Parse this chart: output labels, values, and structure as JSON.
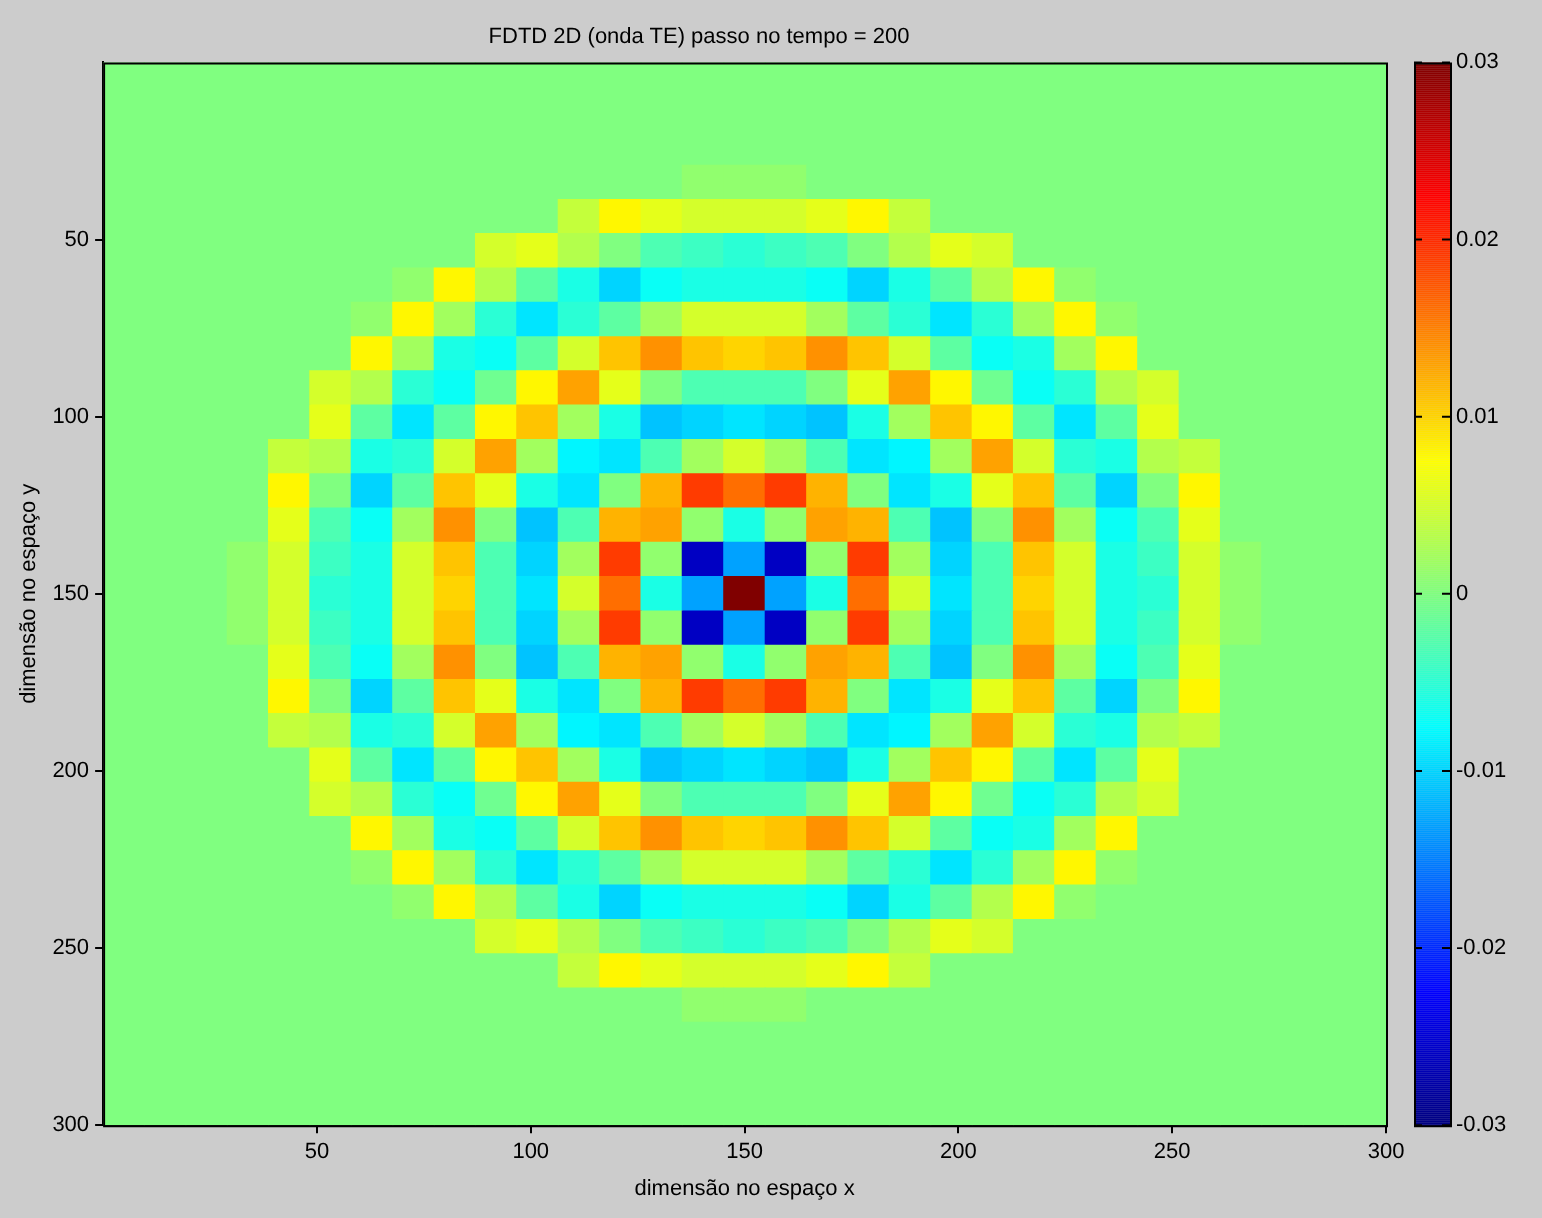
{
  "chart_data": {
    "type": "heatmap",
    "title": "FDTD 2D (onda TE) passo no tempo = 200",
    "xlabel": "dimensão no espaço x",
    "ylabel": "dimensão no espaço y",
    "x": [
      4.8,
      14.5,
      24.2,
      33.9,
      43.5,
      53.2,
      62.9,
      72.6,
      82.3,
      91.9,
      101.6,
      111.3,
      121.0,
      130.6,
      140.3,
      150.0,
      159.7,
      169.4,
      179.0,
      188.7,
      198.4,
      208.1,
      217.7,
      227.4,
      237.1,
      246.8,
      256.5,
      266.1,
      275.8,
      285.5,
      295.2
    ],
    "y": [
      4.8,
      14.5,
      24.2,
      33.9,
      43.5,
      53.2,
      62.9,
      72.6,
      82.3,
      91.9,
      101.6,
      111.3,
      121.0,
      130.6,
      140.3,
      150.0,
      159.7,
      169.4,
      179.0,
      188.7,
      198.4,
      208.1,
      217.7,
      227.4,
      237.1,
      246.8,
      256.5,
      266.1,
      275.8,
      285.5,
      295.2
    ],
    "xlim": [
      0,
      300
    ],
    "xticks": [
      50,
      100,
      150,
      200,
      250,
      300
    ],
    "ylim": [
      300,
      0
    ],
    "yticks": [
      50,
      100,
      150,
      200,
      250,
      300
    ],
    "clim": [
      -0.03,
      0.03
    ],
    "cticks": [
      -0.03,
      -0.02,
      -0.01,
      0,
      0.01,
      0.02,
      0.03
    ],
    "cells": [
      [
        0,
        0,
        0,
        0,
        0,
        0,
        0,
        0,
        0,
        0,
        0,
        0,
        0,
        0,
        0,
        0,
        0,
        0,
        0,
        0,
        0,
        0,
        0,
        0,
        0,
        0,
        0,
        0,
        0,
        0,
        0
      ],
      [
        0,
        0,
        0,
        0,
        0,
        0,
        0,
        0,
        0,
        0,
        0,
        0,
        0,
        0,
        0,
        0,
        0,
        0,
        0,
        0,
        0,
        0,
        0,
        0,
        0,
        0,
        0,
        0,
        0,
        0,
        0
      ],
      [
        0,
        0,
        0,
        0,
        0,
        0,
        0,
        0,
        0,
        0,
        0,
        0,
        0,
        0,
        0,
        0,
        0,
        0,
        0,
        0,
        0,
        0,
        0,
        0,
        0,
        0,
        0,
        0,
        0,
        0,
        0
      ],
      [
        0,
        0,
        0,
        0,
        0,
        0,
        0,
        0,
        0,
        0,
        0,
        0,
        0,
        0,
        0.001,
        0.001,
        0.001,
        0,
        0,
        0,
        0,
        0,
        0,
        0,
        0,
        0,
        0,
        0,
        0,
        0,
        0
      ],
      [
        0,
        0,
        0,
        0,
        0,
        0,
        0,
        0,
        0,
        0,
        0,
        0.004,
        0.008,
        0.006,
        0.005,
        0.005,
        0.005,
        0.006,
        0.008,
        0.004,
        0,
        0,
        0,
        0,
        0,
        0,
        0,
        0,
        0,
        0,
        0
      ],
      [
        0,
        0,
        0,
        0,
        0,
        0,
        0,
        0,
        0,
        0.005,
        0.006,
        0.003,
        0,
        -0.003,
        -0.004,
        -0.005,
        -0.004,
        -0.003,
        0,
        0.003,
        0.006,
        0.005,
        0,
        0,
        0,
        0,
        0,
        0,
        0,
        0,
        0
      ],
      [
        0,
        0,
        0,
        0,
        0,
        0,
        0,
        0.001,
        0.008,
        0.003,
        -0.002,
        -0.006,
        -0.01,
        -0.007,
        -0.006,
        -0.006,
        -0.006,
        -0.007,
        -0.01,
        -0.006,
        -0.002,
        0.003,
        0.008,
        0.001,
        0,
        0,
        0,
        0,
        0,
        0,
        0
      ],
      [
        0,
        0,
        0,
        0,
        0,
        0,
        0.001,
        0.008,
        0.002,
        -0.005,
        -0.009,
        -0.005,
        -0.002,
        0.002,
        0.005,
        0.005,
        0.005,
        0.002,
        -0.002,
        -0.005,
        -0.009,
        -0.005,
        0.002,
        0.008,
        0.001,
        0,
        0,
        0,
        0,
        0,
        0
      ],
      [
        0,
        0,
        0,
        0,
        0,
        0,
        0.008,
        0.002,
        -0.006,
        -0.007,
        -0.002,
        0.005,
        0.011,
        0.014,
        0.011,
        0.01,
        0.011,
        0.014,
        0.011,
        0.005,
        -0.002,
        -0.007,
        -0.006,
        0.002,
        0.008,
        0,
        0,
        0,
        0,
        0,
        0
      ],
      [
        0,
        0,
        0,
        0,
        0,
        0.005,
        0.003,
        -0.005,
        -0.007,
        -0.001,
        0.008,
        0.013,
        0.006,
        0,
        -0.003,
        -0.003,
        -0.003,
        0,
        0.006,
        0.013,
        0.008,
        -0.001,
        -0.007,
        -0.005,
        0.003,
        0.005,
        0,
        0,
        0,
        0,
        0
      ],
      [
        0,
        0,
        0,
        0,
        0,
        0.006,
        -0.002,
        -0.009,
        -0.002,
        0.008,
        0.011,
        0.002,
        -0.006,
        -0.011,
        -0.01,
        -0.009,
        -0.01,
        -0.011,
        -0.006,
        0.002,
        0.011,
        0.008,
        -0.002,
        -0.009,
        -0.002,
        0.006,
        0,
        0,
        0,
        0,
        0
      ],
      [
        0,
        0,
        0,
        0,
        0.004,
        0.003,
        -0.006,
        -0.005,
        0.005,
        0.013,
        0.002,
        -0.008,
        -0.009,
        -0.003,
        0.002,
        0.005,
        0.002,
        -0.003,
        -0.009,
        -0.008,
        0.002,
        0.013,
        0.005,
        -0.005,
        -0.006,
        0.003,
        0.004,
        0,
        0,
        0,
        0
      ],
      [
        0,
        0,
        0,
        0,
        0.008,
        0,
        -0.01,
        -0.002,
        0.011,
        0.006,
        -0.006,
        -0.009,
        0,
        0.012,
        0.019,
        0.016,
        0.019,
        0.012,
        0,
        -0.009,
        -0.006,
        0.006,
        0.011,
        -0.002,
        -0.01,
        0,
        0.008,
        0,
        0,
        0,
        0
      ],
      [
        0,
        0,
        0,
        0,
        0.006,
        -0.003,
        -0.007,
        0.002,
        0.014,
        0,
        -0.011,
        -0.003,
        0.012,
        0.013,
        0.001,
        -0.006,
        0.001,
        0.013,
        0.012,
        -0.003,
        -0.011,
        0,
        0.014,
        0.002,
        -0.007,
        -0.003,
        0.006,
        0,
        0,
        0,
        0
      ],
      [
        0,
        0,
        0,
        0.001,
        0.005,
        -0.004,
        -0.006,
        0.005,
        0.011,
        -0.003,
        -0.01,
        0.002,
        0.019,
        0.001,
        -0.026,
        -0.013,
        -0.026,
        0.001,
        0.019,
        0.002,
        -0.01,
        -0.003,
        0.011,
        0.005,
        -0.006,
        -0.004,
        0.005,
        0.001,
        0,
        0,
        0
      ],
      [
        0,
        0,
        0,
        0.001,
        0.005,
        -0.005,
        -0.006,
        0.005,
        0.01,
        -0.003,
        -0.009,
        0.005,
        0.016,
        -0.006,
        -0.013,
        0.03,
        -0.013,
        -0.006,
        0.016,
        0.005,
        -0.009,
        -0.003,
        0.01,
        0.005,
        -0.006,
        -0.005,
        0.005,
        0.001,
        0,
        0,
        0
      ],
      [
        0,
        0,
        0,
        0.001,
        0.005,
        -0.004,
        -0.006,
        0.005,
        0.011,
        -0.003,
        -0.01,
        0.002,
        0.019,
        0.001,
        -0.026,
        -0.013,
        -0.026,
        0.001,
        0.019,
        0.002,
        -0.01,
        -0.003,
        0.011,
        0.005,
        -0.006,
        -0.004,
        0.005,
        0.001,
        0,
        0,
        0
      ],
      [
        0,
        0,
        0,
        0,
        0.006,
        -0.003,
        -0.007,
        0.002,
        0.014,
        0,
        -0.011,
        -0.003,
        0.012,
        0.013,
        0.001,
        -0.006,
        0.001,
        0.013,
        0.012,
        -0.003,
        -0.011,
        0,
        0.014,
        0.002,
        -0.007,
        -0.003,
        0.006,
        0,
        0,
        0,
        0
      ],
      [
        0,
        0,
        0,
        0,
        0.008,
        0,
        -0.01,
        -0.002,
        0.011,
        0.006,
        -0.006,
        -0.009,
        0,
        0.012,
        0.019,
        0.016,
        0.019,
        0.012,
        0,
        -0.009,
        -0.006,
        0.006,
        0.011,
        -0.002,
        -0.01,
        0,
        0.008,
        0,
        0,
        0,
        0
      ],
      [
        0,
        0,
        0,
        0,
        0.004,
        0.003,
        -0.006,
        -0.005,
        0.005,
        0.013,
        0.002,
        -0.008,
        -0.009,
        -0.003,
        0.002,
        0.005,
        0.002,
        -0.003,
        -0.009,
        -0.008,
        0.002,
        0.013,
        0.005,
        -0.005,
        -0.006,
        0.003,
        0.004,
        0,
        0,
        0,
        0
      ],
      [
        0,
        0,
        0,
        0,
        0,
        0.006,
        -0.002,
        -0.009,
        -0.002,
        0.008,
        0.011,
        0.002,
        -0.006,
        -0.011,
        -0.01,
        -0.009,
        -0.01,
        -0.011,
        -0.006,
        0.002,
        0.011,
        0.008,
        -0.002,
        -0.009,
        -0.002,
        0.006,
        0,
        0,
        0,
        0,
        0
      ],
      [
        0,
        0,
        0,
        0,
        0,
        0.005,
        0.003,
        -0.005,
        -0.007,
        -0.001,
        0.008,
        0.013,
        0.006,
        0,
        -0.003,
        -0.003,
        -0.003,
        0,
        0.006,
        0.013,
        0.008,
        -0.001,
        -0.007,
        -0.005,
        0.003,
        0.005,
        0,
        0,
        0,
        0,
        0
      ],
      [
        0,
        0,
        0,
        0,
        0,
        0,
        0.008,
        0.002,
        -0.006,
        -0.007,
        -0.002,
        0.005,
        0.011,
        0.014,
        0.011,
        0.01,
        0.011,
        0.014,
        0.011,
        0.005,
        -0.002,
        -0.007,
        -0.006,
        0.002,
        0.008,
        0,
        0,
        0,
        0,
        0,
        0
      ],
      [
        0,
        0,
        0,
        0,
        0,
        0,
        0.001,
        0.008,
        0.002,
        -0.005,
        -0.009,
        -0.005,
        -0.002,
        0.002,
        0.005,
        0.005,
        0.005,
        0.002,
        -0.002,
        -0.005,
        -0.009,
        -0.005,
        0.002,
        0.008,
        0.001,
        0,
        0,
        0,
        0,
        0,
        0
      ],
      [
        0,
        0,
        0,
        0,
        0,
        0,
        0,
        0.001,
        0.008,
        0.003,
        -0.002,
        -0.006,
        -0.01,
        -0.007,
        -0.006,
        -0.006,
        -0.006,
        -0.007,
        -0.01,
        -0.006,
        -0.002,
        0.003,
        0.008,
        0.001,
        0,
        0,
        0,
        0,
        0,
        0,
        0
      ],
      [
        0,
        0,
        0,
        0,
        0,
        0,
        0,
        0,
        0,
        0.005,
        0.006,
        0.003,
        0,
        -0.003,
        -0.004,
        -0.005,
        -0.004,
        -0.003,
        0,
        0.003,
        0.006,
        0.005,
        0,
        0,
        0,
        0,
        0,
        0,
        0,
        0,
        0
      ],
      [
        0,
        0,
        0,
        0,
        0,
        0,
        0,
        0,
        0,
        0,
        0,
        0.004,
        0.008,
        0.006,
        0.005,
        0.005,
        0.005,
        0.006,
        0.008,
        0.004,
        0,
        0,
        0,
        0,
        0,
        0,
        0,
        0,
        0,
        0,
        0
      ],
      [
        0,
        0,
        0,
        0,
        0,
        0,
        0,
        0,
        0,
        0,
        0,
        0,
        0,
        0,
        0.001,
        0.001,
        0.001,
        0,
        0,
        0,
        0,
        0,
        0,
        0,
        0,
        0,
        0,
        0,
        0,
        0,
        0
      ],
      [
        0,
        0,
        0,
        0,
        0,
        0,
        0,
        0,
        0,
        0,
        0,
        0,
        0,
        0,
        0,
        0,
        0,
        0,
        0,
        0,
        0,
        0,
        0,
        0,
        0,
        0,
        0,
        0,
        0,
        0,
        0
      ],
      [
        0,
        0,
        0,
        0,
        0,
        0,
        0,
        0,
        0,
        0,
        0,
        0,
        0,
        0,
        0,
        0,
        0,
        0,
        0,
        0,
        0,
        0,
        0,
        0,
        0,
        0,
        0,
        0,
        0,
        0,
        0
      ],
      [
        0,
        0,
        0,
        0,
        0,
        0,
        0,
        0,
        0,
        0,
        0,
        0,
        0,
        0,
        0,
        0,
        0,
        0,
        0,
        0,
        0,
        0,
        0,
        0,
        0,
        0,
        0,
        0,
        0,
        0,
        0
      ]
    ]
  }
}
